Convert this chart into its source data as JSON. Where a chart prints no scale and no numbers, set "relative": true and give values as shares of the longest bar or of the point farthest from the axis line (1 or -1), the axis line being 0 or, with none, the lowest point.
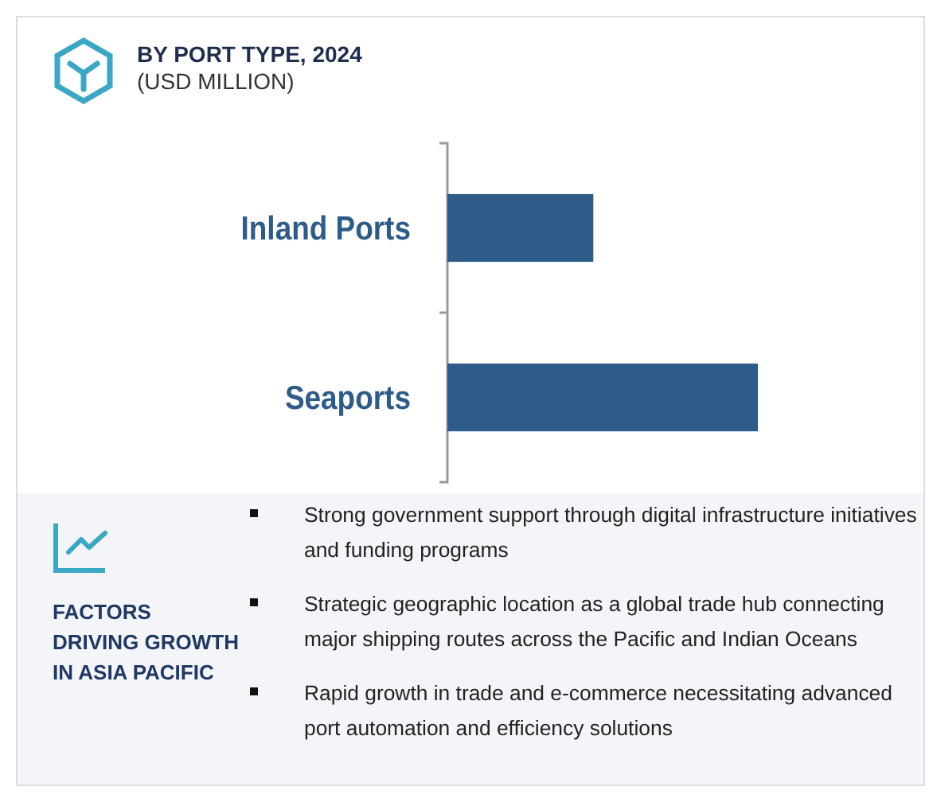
{
  "chart_data": {
    "type": "bar",
    "orientation": "horizontal",
    "relative": true,
    "title": "BY PORT TYPE, 2024",
    "subtitle": "(USD MILLION)",
    "categories": [
      "Inland Ports",
      "Seaports"
    ],
    "values": [
      0.47,
      1
    ],
    "color": "#2e5c8a",
    "annotations": [
      "FACTORS DRIVING GROWTH IN ASIA PACIFIC",
      "Strong government support through digital infrastructure initiatives and funding programs",
      "Strategic geographic location as a global trade hub connecting major shipping routes across the Pacific and Indian Oceans",
      "Rapid growth in trade and e-commerce necessitating advanced port automation and efficiency solutions"
    ]
  }
}
